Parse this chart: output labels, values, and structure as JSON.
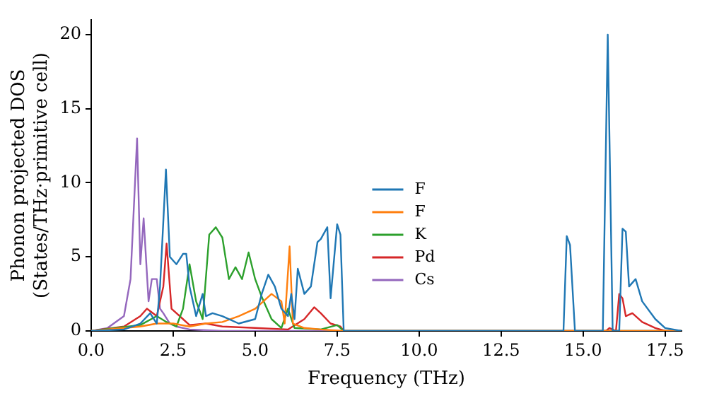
{
  "chart_data": {
    "type": "line",
    "xlabel": "Frequency (THz)",
    "ylabel": "Phonon projected DOS\n(States/THz·primitive cell)",
    "xlim": [
      0,
      18
    ],
    "ylim": [
      0,
      21
    ],
    "xticks": [
      {
        "value": 0,
        "label": "0.0"
      },
      {
        "value": 2.5,
        "label": "2.5"
      },
      {
        "value": 5,
        "label": "5.0"
      },
      {
        "value": 7.5,
        "label": "7.5"
      },
      {
        "value": 10,
        "label": "10.0"
      },
      {
        "value": 12.5,
        "label": "12.5"
      },
      {
        "value": 15,
        "label": "15.0"
      },
      {
        "value": 17.5,
        "label": "17.5"
      }
    ],
    "yticks": [
      0,
      5,
      10,
      15,
      20
    ],
    "grid": false,
    "legend": "center",
    "marker": "none",
    "line_style": "solid",
    "series": [
      {
        "name": "F",
        "color": "#1f77b4",
        "x": [
          0,
          1.0,
          1.5,
          1.8,
          2.0,
          2.1,
          2.28,
          2.4,
          2.6,
          2.8,
          2.9,
          3.0,
          3.1,
          3.2,
          3.4,
          3.5,
          3.7,
          4.0,
          4.5,
          5.0,
          5.2,
          5.4,
          5.6,
          5.8,
          6.0,
          6.1,
          6.2,
          6.3,
          6.5,
          6.7,
          6.9,
          7.0,
          7.2,
          7.3,
          7.5,
          7.6,
          7.7,
          8,
          14.4,
          14.5,
          14.6,
          14.75,
          15.6,
          15.75,
          15.9,
          16.1,
          16.2,
          16.3,
          16.4,
          16.6,
          16.8,
          17.2,
          17.5,
          18
        ],
        "values": [
          0,
          0.1,
          0.5,
          1.2,
          0.5,
          3,
          10.9,
          5,
          4.5,
          5.2,
          5.2,
          3,
          2,
          1,
          2.5,
          1,
          1.2,
          1,
          0.5,
          0.8,
          2.5,
          3.8,
          3,
          1.5,
          1,
          2.5,
          0.8,
          4.2,
          2.5,
          3,
          6,
          6.2,
          7.0,
          2.2,
          7.2,
          6.5,
          0,
          0,
          0,
          6.4,
          5.8,
          0,
          0,
          20,
          0,
          0,
          6.9,
          6.7,
          3,
          3.5,
          2,
          0.8,
          0.2,
          0
        ]
      },
      {
        "name": "F",
        "color": "#ff7f0e",
        "x": [
          0,
          1.5,
          2.0,
          2.5,
          3.0,
          3.5,
          4.0,
          4.5,
          5.0,
          5.5,
          5.8,
          5.9,
          6.05,
          6.15,
          6.5,
          7,
          7.7,
          18
        ],
        "values": [
          0,
          0.3,
          0.5,
          0.5,
          0.3,
          0.5,
          0.6,
          1.0,
          1.5,
          2.5,
          2.0,
          0.5,
          5.7,
          0.5,
          0.2,
          0.1,
          0,
          0
        ]
      },
      {
        "name": "K",
        "color": "#2ca02c",
        "x": [
          0,
          1.5,
          2.0,
          2.3,
          2.6,
          2.8,
          3.0,
          3.2,
          3.4,
          3.6,
          3.8,
          4.0,
          4.2,
          4.4,
          4.6,
          4.8,
          5.0,
          5.2,
          5.5,
          5.8,
          6.0,
          6.2,
          7,
          7.5,
          7.7,
          18
        ],
        "values": [
          0,
          0.4,
          1.0,
          0.6,
          0.3,
          1.5,
          4.5,
          2,
          0.8,
          6.5,
          7.0,
          6.3,
          3.5,
          4.3,
          3.5,
          5.3,
          3.5,
          2.3,
          0.8,
          0.2,
          1.5,
          0.2,
          0.1,
          0.4,
          0,
          0
        ]
      },
      {
        "name": "Pd",
        "color": "#d62728",
        "x": [
          0,
          1.0,
          1.5,
          1.7,
          2.0,
          2.2,
          2.3,
          2.45,
          2.8,
          3.0,
          3.5,
          4.0,
          5,
          6,
          6.5,
          6.8,
          7.0,
          7.3,
          7.6,
          7.7,
          15.7,
          15.8,
          16.0,
          16.1,
          16.2,
          16.3,
          16.5,
          16.8,
          17.2,
          17.5,
          18
        ],
        "values": [
          0,
          0.3,
          1.0,
          1.5,
          1.0,
          3,
          5.9,
          1.5,
          0.8,
          0.4,
          0.5,
          0.3,
          0.2,
          0.1,
          0.8,
          1.6,
          1.2,
          0.5,
          0.3,
          0,
          0,
          0.2,
          0,
          2.5,
          2.2,
          1.0,
          1.2,
          0.6,
          0.2,
          0,
          0
        ]
      },
      {
        "name": "Cs",
        "color": "#9467bd",
        "x": [
          0,
          0.5,
          1.0,
          1.2,
          1.4,
          1.5,
          1.6,
          1.75,
          1.85,
          2.0,
          2.1,
          2.2,
          2.4,
          2.6,
          3,
          4,
          18
        ],
        "values": [
          0,
          0.2,
          1.0,
          3.5,
          13.0,
          4.5,
          7.6,
          2,
          3.5,
          3.5,
          1.5,
          1.2,
          0.5,
          0.3,
          0.1,
          0,
          0
        ]
      }
    ]
  }
}
